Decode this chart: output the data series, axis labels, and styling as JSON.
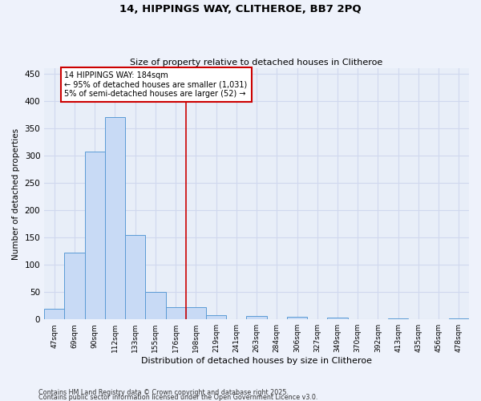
{
  "title1": "14, HIPPINGS WAY, CLITHEROE, BB7 2PQ",
  "title2": "Size of property relative to detached houses in Clitheroe",
  "xlabel": "Distribution of detached houses by size in Clitheroe",
  "ylabel": "Number of detached properties",
  "categories": [
    "47sqm",
    "69sqm",
    "90sqm",
    "112sqm",
    "133sqm",
    "155sqm",
    "176sqm",
    "198sqm",
    "219sqm",
    "241sqm",
    "263sqm",
    "284sqm",
    "306sqm",
    "327sqm",
    "349sqm",
    "370sqm",
    "392sqm",
    "413sqm",
    "435sqm",
    "456sqm",
    "478sqm"
  ],
  "values": [
    20,
    123,
    308,
    370,
    154,
    50,
    23,
    22,
    7,
    0,
    6,
    0,
    5,
    0,
    3,
    0,
    0,
    2,
    0,
    0,
    2
  ],
  "bar_color": "#c8daf5",
  "bar_edge_color": "#5b9bd5",
  "vline_index": 6.5,
  "vline_color": "#cc0000",
  "annotation_text": "14 HIPPINGS WAY: 184sqm\n← 95% of detached houses are smaller (1,031)\n5% of semi-detached houses are larger (52) →",
  "annotation_box_color": "#ffffff",
  "annotation_box_edge": "#cc0000",
  "ylim": [
    0,
    460
  ],
  "yticks": [
    0,
    50,
    100,
    150,
    200,
    250,
    300,
    350,
    400,
    450
  ],
  "background_color": "#e8eef8",
  "grid_color": "#d0d8ee",
  "footer1": "Contains HM Land Registry data © Crown copyright and database right 2025.",
  "footer2": "Contains public sector information licensed under the Open Government Licence v3.0."
}
